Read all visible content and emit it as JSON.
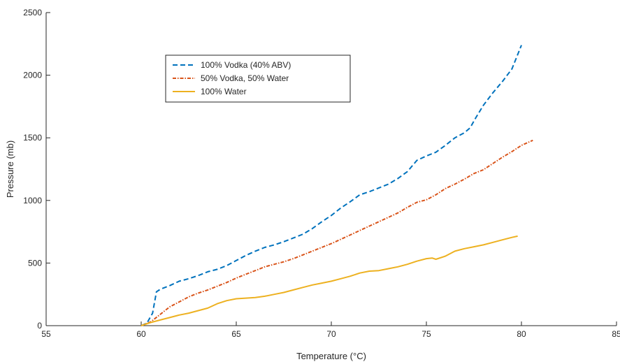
{
  "chart_data": {
    "type": "line",
    "title": "",
    "xlabel": "Temperature (°C)",
    "ylabel": "Pressure (mb)",
    "xlim": [
      55,
      85
    ],
    "ylim": [
      0,
      2500
    ],
    "xticks": [
      55,
      60,
      65,
      70,
      75,
      80,
      85
    ],
    "yticks": [
      0,
      500,
      1000,
      1500,
      2000,
      2500
    ],
    "grid": false,
    "legend_position": "upper-left inside axes",
    "series": [
      {
        "name": "100% Vodka (40% ABV)",
        "color": "#0072BD",
        "line_style": "dashed",
        "points": [
          [
            60.0,
            0
          ],
          [
            60.3,
            20
          ],
          [
            60.6,
            100
          ],
          [
            60.8,
            270
          ],
          [
            61.0,
            290
          ],
          [
            61.5,
            320
          ],
          [
            62.0,
            355
          ],
          [
            62.5,
            375
          ],
          [
            63.0,
            400
          ],
          [
            63.5,
            430
          ],
          [
            64.0,
            450
          ],
          [
            64.5,
            480
          ],
          [
            65.0,
            520
          ],
          [
            65.5,
            560
          ],
          [
            66.0,
            595
          ],
          [
            66.5,
            625
          ],
          [
            67.0,
            645
          ],
          [
            67.5,
            670
          ],
          [
            68.0,
            700
          ],
          [
            68.5,
            730
          ],
          [
            69.0,
            775
          ],
          [
            69.5,
            830
          ],
          [
            70.0,
            880
          ],
          [
            70.5,
            940
          ],
          [
            71.0,
            990
          ],
          [
            71.5,
            1045
          ],
          [
            72.0,
            1070
          ],
          [
            72.5,
            1100
          ],
          [
            73.0,
            1130
          ],
          [
            73.5,
            1175
          ],
          [
            74.0,
            1230
          ],
          [
            74.5,
            1320
          ],
          [
            75.0,
            1355
          ],
          [
            75.5,
            1385
          ],
          [
            76.0,
            1440
          ],
          [
            76.5,
            1500
          ],
          [
            77.0,
            1540
          ],
          [
            77.3,
            1580
          ],
          [
            77.6,
            1660
          ],
          [
            78.0,
            1760
          ],
          [
            78.5,
            1860
          ],
          [
            79.0,
            1950
          ],
          [
            79.5,
            2050
          ],
          [
            80.0,
            2240
          ]
        ]
      },
      {
        "name": "50% Vodka, 50% Water",
        "color": "#D95319",
        "line_style": "dashdot",
        "points": [
          [
            60.0,
            0
          ],
          [
            60.5,
            30
          ],
          [
            61.0,
            90
          ],
          [
            61.5,
            150
          ],
          [
            62.0,
            190
          ],
          [
            62.5,
            230
          ],
          [
            63.0,
            260
          ],
          [
            63.5,
            285
          ],
          [
            64.0,
            315
          ],
          [
            64.5,
            345
          ],
          [
            65.0,
            380
          ],
          [
            65.5,
            410
          ],
          [
            66.0,
            440
          ],
          [
            66.5,
            470
          ],
          [
            67.0,
            490
          ],
          [
            67.5,
            510
          ],
          [
            68.0,
            535
          ],
          [
            68.5,
            565
          ],
          [
            69.0,
            595
          ],
          [
            69.5,
            625
          ],
          [
            70.0,
            655
          ],
          [
            70.5,
            690
          ],
          [
            71.0,
            725
          ],
          [
            71.5,
            760
          ],
          [
            72.0,
            795
          ],
          [
            72.5,
            830
          ],
          [
            73.0,
            865
          ],
          [
            73.5,
            900
          ],
          [
            74.0,
            945
          ],
          [
            74.5,
            985
          ],
          [
            75.0,
            1005
          ],
          [
            75.5,
            1045
          ],
          [
            76.0,
            1095
          ],
          [
            76.5,
            1130
          ],
          [
            77.0,
            1170
          ],
          [
            77.5,
            1215
          ],
          [
            78.0,
            1245
          ],
          [
            78.5,
            1295
          ],
          [
            79.0,
            1345
          ],
          [
            79.5,
            1390
          ],
          [
            80.0,
            1440
          ],
          [
            80.6,
            1480
          ]
        ]
      },
      {
        "name": "100% Water",
        "color": "#EDB120",
        "line_style": "solid",
        "points": [
          [
            60.0,
            0
          ],
          [
            60.5,
            25
          ],
          [
            61.0,
            45
          ],
          [
            61.5,
            65
          ],
          [
            62.0,
            85
          ],
          [
            62.5,
            100
          ],
          [
            63.0,
            120
          ],
          [
            63.5,
            140
          ],
          [
            64.0,
            175
          ],
          [
            64.5,
            200
          ],
          [
            65.0,
            215
          ],
          [
            65.5,
            220
          ],
          [
            66.0,
            225
          ],
          [
            66.5,
            235
          ],
          [
            67.0,
            250
          ],
          [
            67.5,
            265
          ],
          [
            68.0,
            285
          ],
          [
            68.5,
            305
          ],
          [
            69.0,
            325
          ],
          [
            69.5,
            340
          ],
          [
            70.0,
            355
          ],
          [
            70.5,
            375
          ],
          [
            71.0,
            395
          ],
          [
            71.5,
            420
          ],
          [
            72.0,
            435
          ],
          [
            72.5,
            440
          ],
          [
            73.0,
            455
          ],
          [
            73.5,
            470
          ],
          [
            74.0,
            490
          ],
          [
            74.5,
            515
          ],
          [
            75.0,
            535
          ],
          [
            75.3,
            540
          ],
          [
            75.5,
            530
          ],
          [
            76.0,
            555
          ],
          [
            76.5,
            595
          ],
          [
            77.0,
            615
          ],
          [
            77.5,
            630
          ],
          [
            78.0,
            645
          ],
          [
            78.5,
            665
          ],
          [
            79.0,
            685
          ],
          [
            79.5,
            705
          ],
          [
            79.8,
            715
          ]
        ]
      }
    ]
  }
}
